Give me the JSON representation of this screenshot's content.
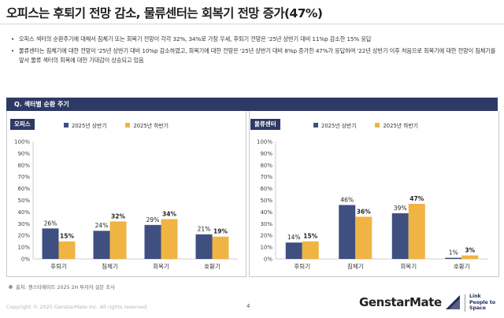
{
  "page": {
    "title": "오피스는 후퇴기 전망 감소, 물류센터는 회복기 전망 증가(47%)",
    "bullets": [
      "오피스 섹터의 순환주기에 대해서 침체기 또는 회복기 전망이 각각 32%, 34%로 가장 우세, 후퇴기 전망은 '25년 상반기 대비 11%p 감소한 15% 응답",
      "물류센터는 침체기에 대한 전망이 '25년 상반기 대비 10%p 감소하였고, 회복기에 대한 전망은 '25년 상반기 대비 8%p 증가한 47%가 응답하여 '22년 상반기 이후 처음으로 회복기에 대한 전망이 침체기를 앞서 물류 섹터의 회복에 대한 기대감이 상승되고 있음"
    ],
    "section_header": "Q. 섹터별 순환 주기",
    "source": "출처: 젠스타메이트 2025 2H 투자자 설문 조사",
    "copyright": "Copyright © 2025 GenstarMate Inc. All rights reserved.",
    "page_number": "4",
    "brand": "GenstarMate",
    "tagline": [
      "Link",
      "People to",
      "Space"
    ]
  },
  "colors": {
    "h1": "#3f5080",
    "h2": "#f0b445",
    "header_bg": "#2e3a66"
  },
  "chart_data": [
    {
      "type": "bar",
      "tag": "오피스",
      "categories": [
        "후퇴기",
        "침체기",
        "회복기",
        "호황기"
      ],
      "series": [
        {
          "name": "2025년 상반기",
          "values": [
            26,
            24,
            29,
            21
          ]
        },
        {
          "name": "2025년 하반기",
          "values": [
            15,
            32,
            34,
            19
          ]
        }
      ],
      "ylim": [
        0,
        100
      ],
      "yticks": [
        "0%",
        "10%",
        "20%",
        "30%",
        "40%",
        "50%",
        "60%",
        "70%",
        "80%",
        "90%",
        "100%"
      ]
    },
    {
      "type": "bar",
      "tag": "물류센터",
      "categories": [
        "후퇴기",
        "침체기",
        "회복기",
        "호황기"
      ],
      "series": [
        {
          "name": "2025년 상반기",
          "values": [
            14,
            46,
            39,
            1
          ]
        },
        {
          "name": "2025년 하반기",
          "values": [
            15,
            36,
            47,
            3
          ]
        }
      ],
      "ylim": [
        0,
        100
      ],
      "yticks": [
        "0%",
        "10%",
        "20%",
        "30%",
        "40%",
        "50%",
        "60%",
        "70%",
        "80%",
        "90%",
        "100%"
      ]
    }
  ]
}
